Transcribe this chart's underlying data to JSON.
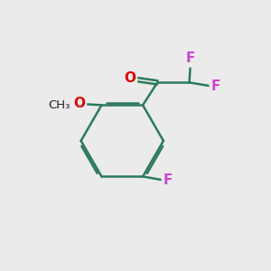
{
  "bg_color": "#ebebeb",
  "bond_color": "#2d7a5a",
  "bond_width": 1.8,
  "atom_colors": {
    "F": "#cc44cc",
    "O": "#dd0000",
    "C": "#000000"
  },
  "font_size_atom": 11,
  "font_size_methoxy": 9.5
}
